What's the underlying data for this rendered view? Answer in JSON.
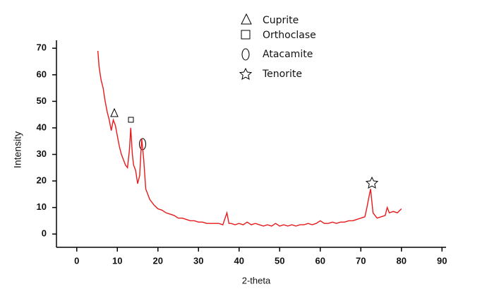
{
  "chart_data": {
    "type": "line",
    "x_label": "2-theta",
    "y_label": "Intensity",
    "xlim": [
      -5,
      91
    ],
    "ylim": [
      -5,
      73
    ],
    "xticks": [
      0,
      10,
      20,
      30,
      40,
      50,
      60,
      70,
      80,
      90
    ],
    "yticks": [
      0,
      10,
      20,
      30,
      40,
      50,
      60,
      70
    ],
    "legend": [
      "Cuprite",
      "Orthoclase",
      "Atacamite",
      "Tenorite"
    ],
    "series": [
      {
        "color": "#e8191a",
        "x": [
          5.2,
          5.5,
          6,
          6.5,
          7,
          7.5,
          8,
          8.5,
          9,
          9.5,
          10,
          10.5,
          11,
          11.5,
          12,
          12.5,
          13,
          13.3,
          13.7,
          14,
          14.5,
          15,
          15.5,
          16,
          16.5,
          17,
          17.5,
          18,
          19,
          20,
          21,
          22,
          23,
          24,
          25,
          26,
          27,
          28,
          29,
          30,
          31,
          32,
          33,
          34,
          35,
          36,
          37,
          37.5,
          38,
          39,
          40,
          41,
          42,
          43,
          44,
          45,
          46,
          47,
          48,
          49,
          50,
          51,
          52,
          53,
          54,
          55,
          56,
          57,
          58,
          59,
          60,
          61,
          62,
          63,
          64,
          65,
          66,
          67,
          68,
          69,
          70,
          71,
          71.5,
          72,
          72.4,
          73,
          74,
          75,
          76,
          76.5,
          77,
          78,
          79,
          80
        ],
        "values": [
          69,
          63,
          58,
          55,
          50,
          46,
          43,
          39,
          43,
          41,
          37,
          33,
          30,
          28,
          26,
          25,
          32,
          40,
          30,
          26,
          24,
          19,
          22,
          36,
          28,
          17,
          15,
          13,
          11,
          9.5,
          9,
          8,
          7.5,
          7,
          6,
          6,
          5.5,
          5,
          5,
          4.5,
          4.5,
          4,
          4,
          4,
          4,
          3.5,
          8,
          4,
          4,
          3.5,
          4,
          3.5,
          4.5,
          3.5,
          4,
          3.5,
          3,
          3.5,
          3,
          4,
          3,
          3.5,
          3,
          3.5,
          3,
          3.5,
          3.5,
          4,
          3.5,
          4,
          5,
          4,
          4,
          4.5,
          4,
          4.5,
          4.5,
          5,
          5,
          5.5,
          6,
          6.5,
          10,
          14,
          17,
          8,
          6,
          6.5,
          7,
          10,
          8,
          8.5,
          8,
          9.5
        ]
      }
    ]
  }
}
